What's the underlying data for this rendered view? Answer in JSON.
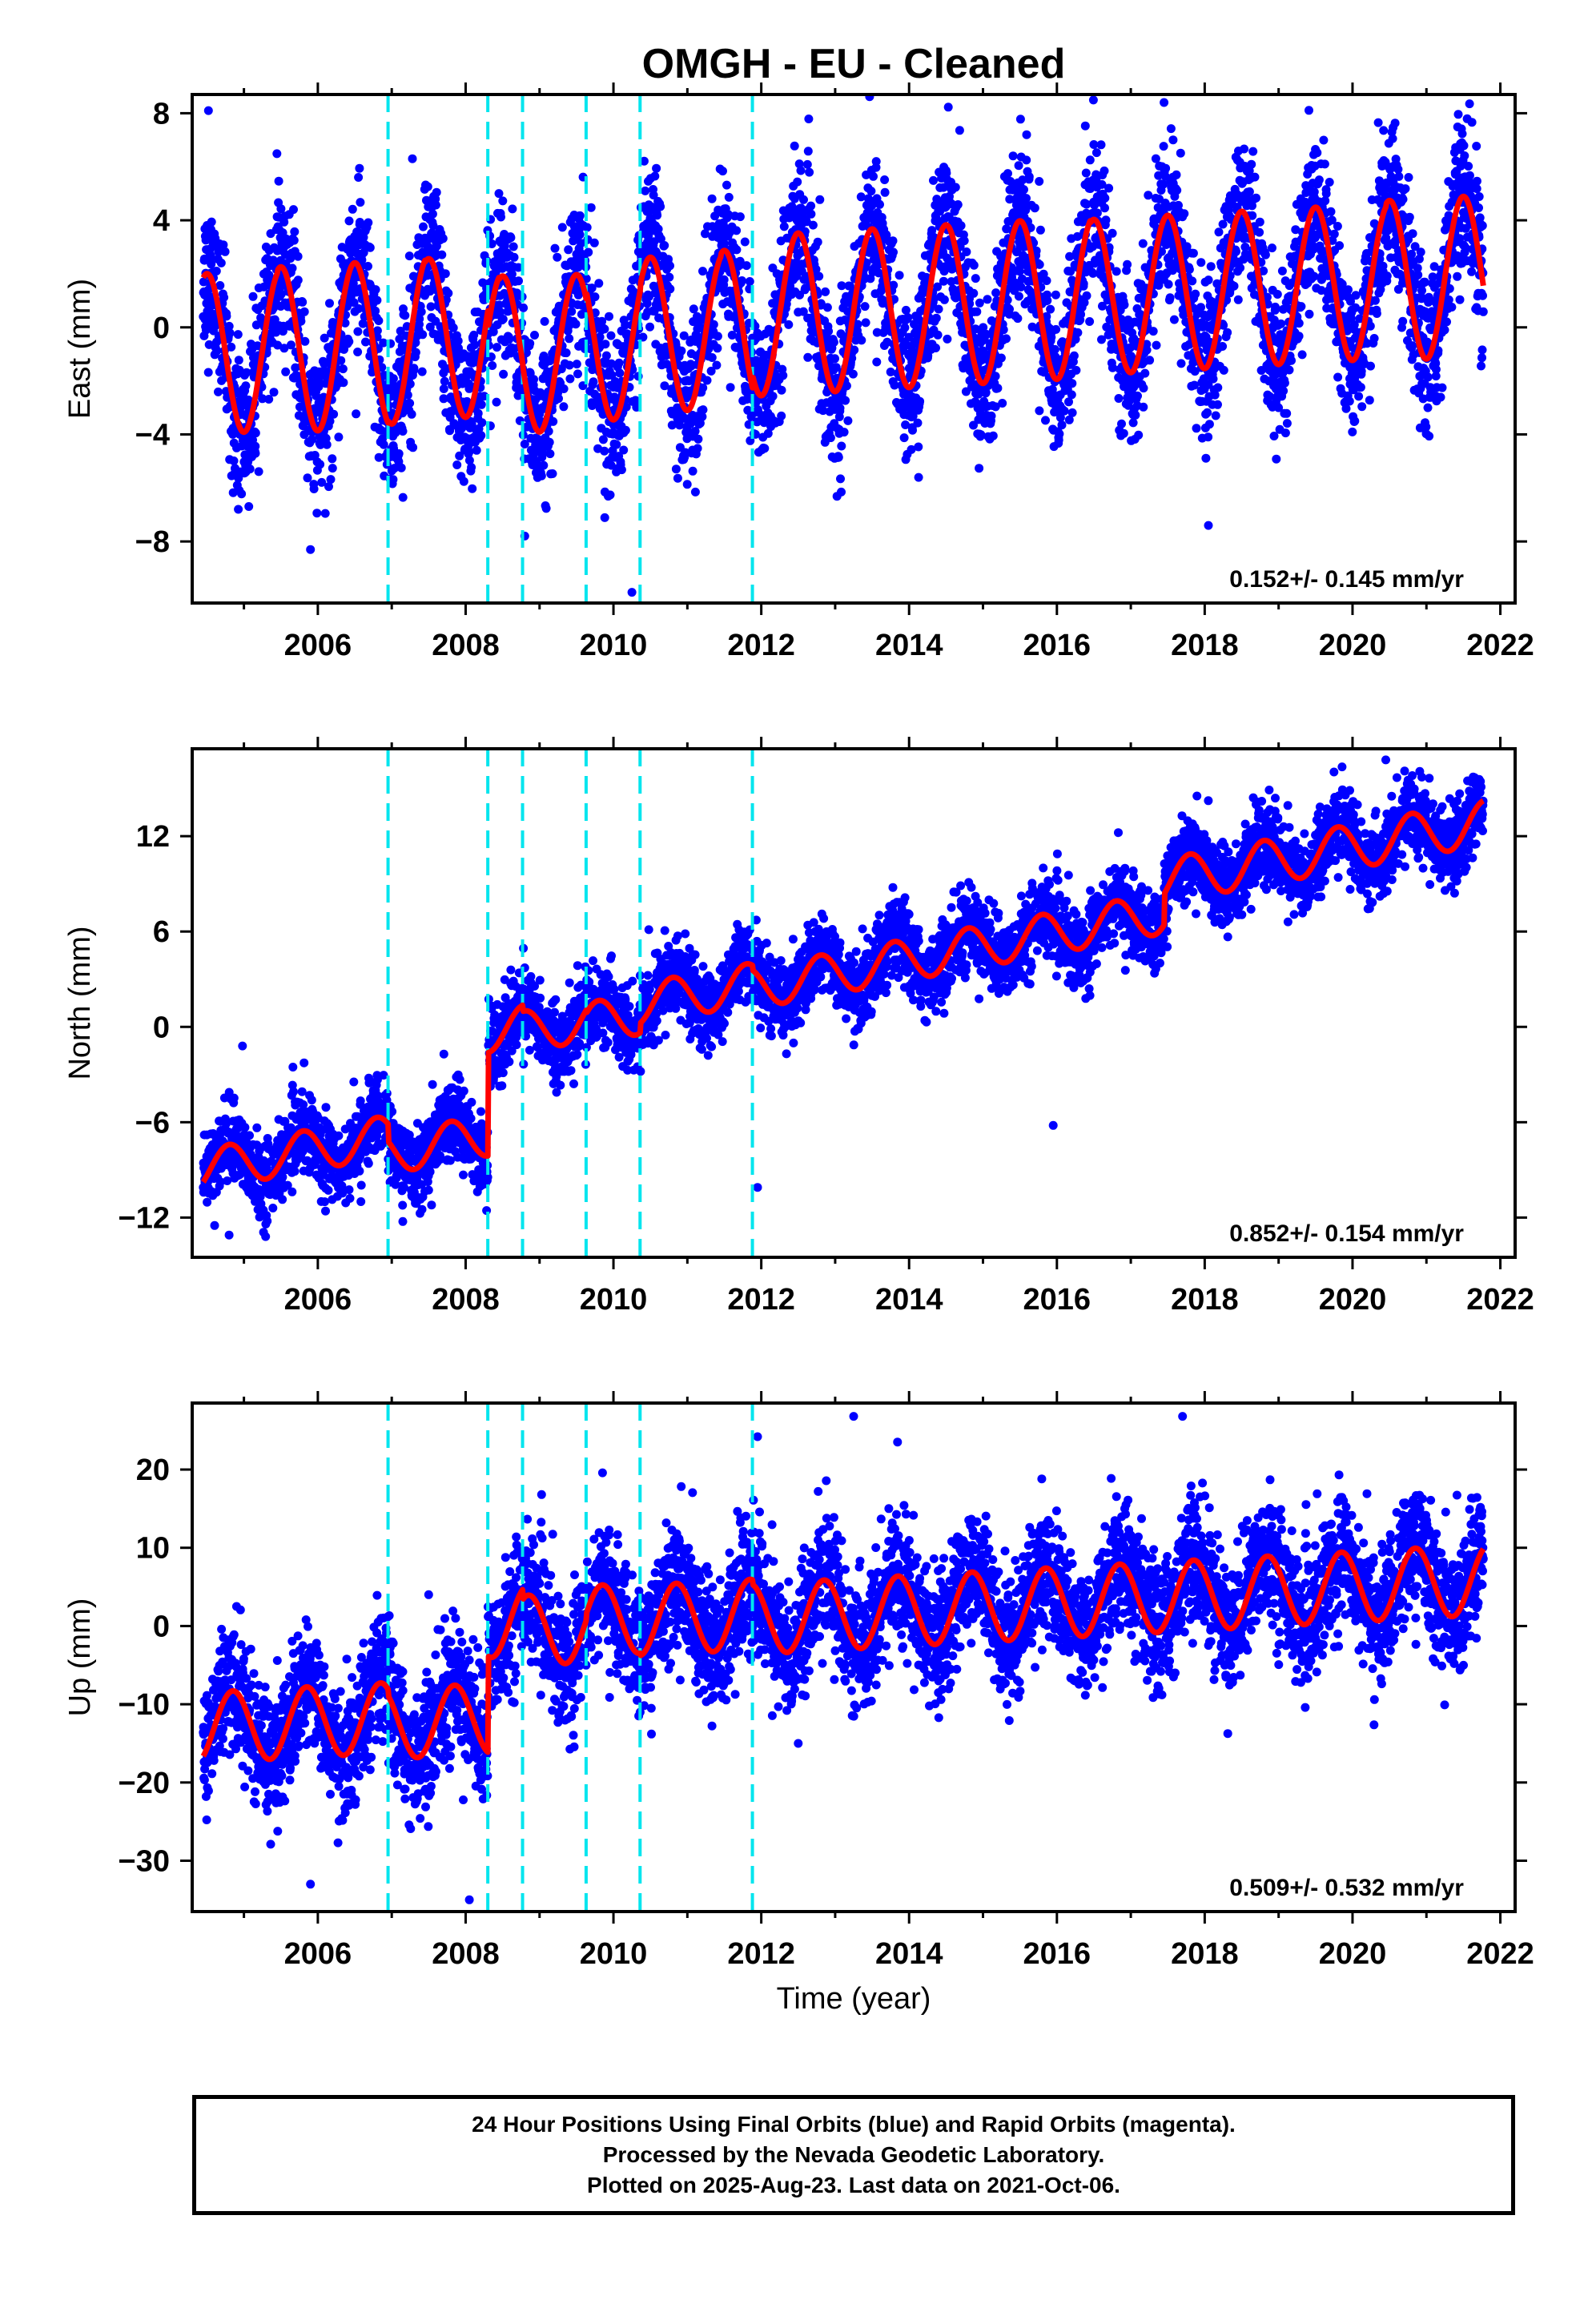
{
  "title": "OMGH  - EU - Cleaned",
  "xlabel": "Time (year)",
  "footer": {
    "line1": "24 Hour Positions Using Final Orbits (blue) and Rapid Orbits (magenta).",
    "line2": "Processed by the Nevada Geodetic Laboratory.",
    "line3": "Plotted on 2025-Aug-23. Last data on 2021-Oct-06."
  },
  "colors": {
    "points": "#0000ff",
    "fit": "#ff0000",
    "event_lines": "#00e5ee",
    "axis": "#000000",
    "background": "#ffffff"
  },
  "chart_data": [
    {
      "type": "scatter",
      "component": "East",
      "ylabel": "East (mm)",
      "xlim": [
        2004.3,
        2022.2
      ],
      "ylim": [
        -10.3,
        8.7
      ],
      "xticks": [
        2006,
        2008,
        2010,
        2012,
        2014,
        2016,
        2018,
        2020,
        2022
      ],
      "yticks": [
        -8,
        -4,
        0,
        4,
        8
      ],
      "ytick_labels": [
        "−8",
        "−4",
        "0",
        "4",
        "8"
      ],
      "data_range": [
        2004.45,
        2021.77
      ],
      "offset_lines": [
        2006.95,
        2008.3,
        2008.77,
        2009.63,
        2010.36,
        2011.88
      ],
      "rate": "0.152+/- 0.145 mm/yr",
      "fit": {
        "t0": 2004.45,
        "trend_mm_per_yr": 0.152,
        "seasonal_amplitude_mm": [
          3.0,
          3.1,
          3.1,
          3.0,
          2.9,
          2.9,
          2.9,
          3.0,
          3.0,
          3.0,
          3.0,
          3.0,
          2.9,
          2.9,
          2.9,
          2.9,
          3.0,
          3.0
        ],
        "phase_year": 0.25,
        "offsets": [
          {
            "time": 2004.45,
            "value": -1.0
          },
          {
            "time": 2006.95,
            "value": -0.9
          },
          {
            "time": 2008.3,
            "value": -1.6
          },
          {
            "time": 2008.77,
            "value": -1.7
          },
          {
            "time": 2009.63,
            "value": -1.4
          },
          {
            "time": 2010.36,
            "value": -1.2
          },
          {
            "time": 2011.88,
            "value": -0.7
          }
        ]
      },
      "scatter_sigma_mm": 1.4,
      "outliers": [
        [
          2004.52,
          8.1
        ],
        [
          2007.28,
          6.3
        ],
        [
          2017.45,
          8.4
        ],
        [
          2010.25,
          -9.9
        ],
        [
          2018.05,
          -7.4
        ],
        [
          2005.9,
          -8.3
        ],
        [
          2008.8,
          -7.8
        ]
      ]
    },
    {
      "type": "scatter",
      "component": "North",
      "ylabel": "North (mm)",
      "xlim": [
        2004.3,
        2022.2
      ],
      "ylim": [
        -14.5,
        17.5
      ],
      "xticks": [
        2006,
        2008,
        2010,
        2012,
        2014,
        2016,
        2018,
        2020,
        2022
      ],
      "yticks": [
        -12,
        -6,
        0,
        6,
        12
      ],
      "ytick_labels": [
        "−12",
        "−6",
        "0",
        "6",
        "12"
      ],
      "data_range": [
        2004.45,
        2021.77
      ],
      "offset_lines": [
        2006.95,
        2008.3,
        2008.77,
        2009.63,
        2010.36,
        2011.88
      ],
      "rate": "0.852+/- 0.154 mm/yr",
      "fit": {
        "t0": 2004.45,
        "trend_mm_per_yr": 0.852,
        "seasonal_amplitude_mm": [
          1.3,
          1.3,
          1.3,
          1.3,
          1.3,
          1.3,
          1.3,
          1.3,
          1.3,
          1.3,
          1.3,
          1.3,
          1.3,
          1.4,
          1.4,
          1.4,
          1.4,
          1.4
        ],
        "phase_year": 0.55,
        "offsets": [
          {
            "time": 2004.45,
            "value": -9.0
          },
          {
            "time": 2006.95,
            "value": -10.1
          },
          {
            "time": 2008.3,
            "value": -3.6
          },
          {
            "time": 2008.77,
            "value": -4.0
          },
          {
            "time": 2009.63,
            "value": -4.2
          },
          {
            "time": 2010.36,
            "value": -3.6
          },
          {
            "time": 2011.88,
            "value": -3.9
          }
        ],
        "post_2017_5_step": 2.0
      },
      "scatter_sigma_mm": 1.2,
      "outliers": [
        [
          2020.45,
          16.8
        ],
        [
          2004.98,
          -1.2
        ],
        [
          2011.95,
          -10.1
        ],
        [
          2015.95,
          -6.2
        ],
        [
          2004.8,
          -13.1
        ]
      ]
    },
    {
      "type": "scatter",
      "component": "Up",
      "ylabel": "Up (mm)",
      "xlim": [
        2004.3,
        2022.2
      ],
      "ylim": [
        -36.5,
        28.5
      ],
      "xticks": [
        2006,
        2008,
        2010,
        2012,
        2014,
        2016,
        2018,
        2020,
        2022
      ],
      "yticks": [
        -30,
        -20,
        -10,
        0,
        10,
        20
      ],
      "ytick_labels": [
        "−30",
        "−20",
        "−10",
        "0",
        "10",
        "20"
      ],
      "data_range": [
        2004.45,
        2021.77
      ],
      "offset_lines": [
        2006.95,
        2008.3,
        2008.77,
        2009.63,
        2010.36,
        2011.88
      ],
      "rate": "0.509+/- 0.532 mm/yr",
      "fit": {
        "t0": 2004.45,
        "trend_mm_per_yr": 0.509,
        "seasonal_amplitude_mm": [
          4.5,
          4.5,
          4.5,
          4.5,
          4.5,
          4.5,
          4.5,
          4.5,
          4.5,
          4.5,
          4.5,
          4.5,
          4.5,
          4.5,
          4.5,
          4.5,
          4.5,
          4.5
        ],
        "phase_year": 0.6,
        "offsets": [
          {
            "time": 2004.45,
            "value": -13.0
          },
          {
            "time": 2006.95,
            "value": -13.8
          },
          {
            "time": 2008.3,
            "value": -1.5
          },
          {
            "time": 2008.77,
            "value": -2.8
          },
          {
            "time": 2009.63,
            "value": -2.0
          },
          {
            "time": 2010.36,
            "value": -2.3
          },
          {
            "time": 2011.88,
            "value": -2.9
          }
        ]
      },
      "scatter_sigma_mm": 4.0,
      "outliers": [
        [
          2013.25,
          26.8
        ],
        [
          2017.7,
          26.8
        ],
        [
          2011.95,
          24.2
        ],
        [
          2008.05,
          -35.0
        ],
        [
          2005.9,
          -33.0
        ],
        [
          2007.5,
          4.0
        ],
        [
          2004.9,
          2.5
        ],
        [
          2012.5,
          -15.0
        ]
      ]
    }
  ]
}
